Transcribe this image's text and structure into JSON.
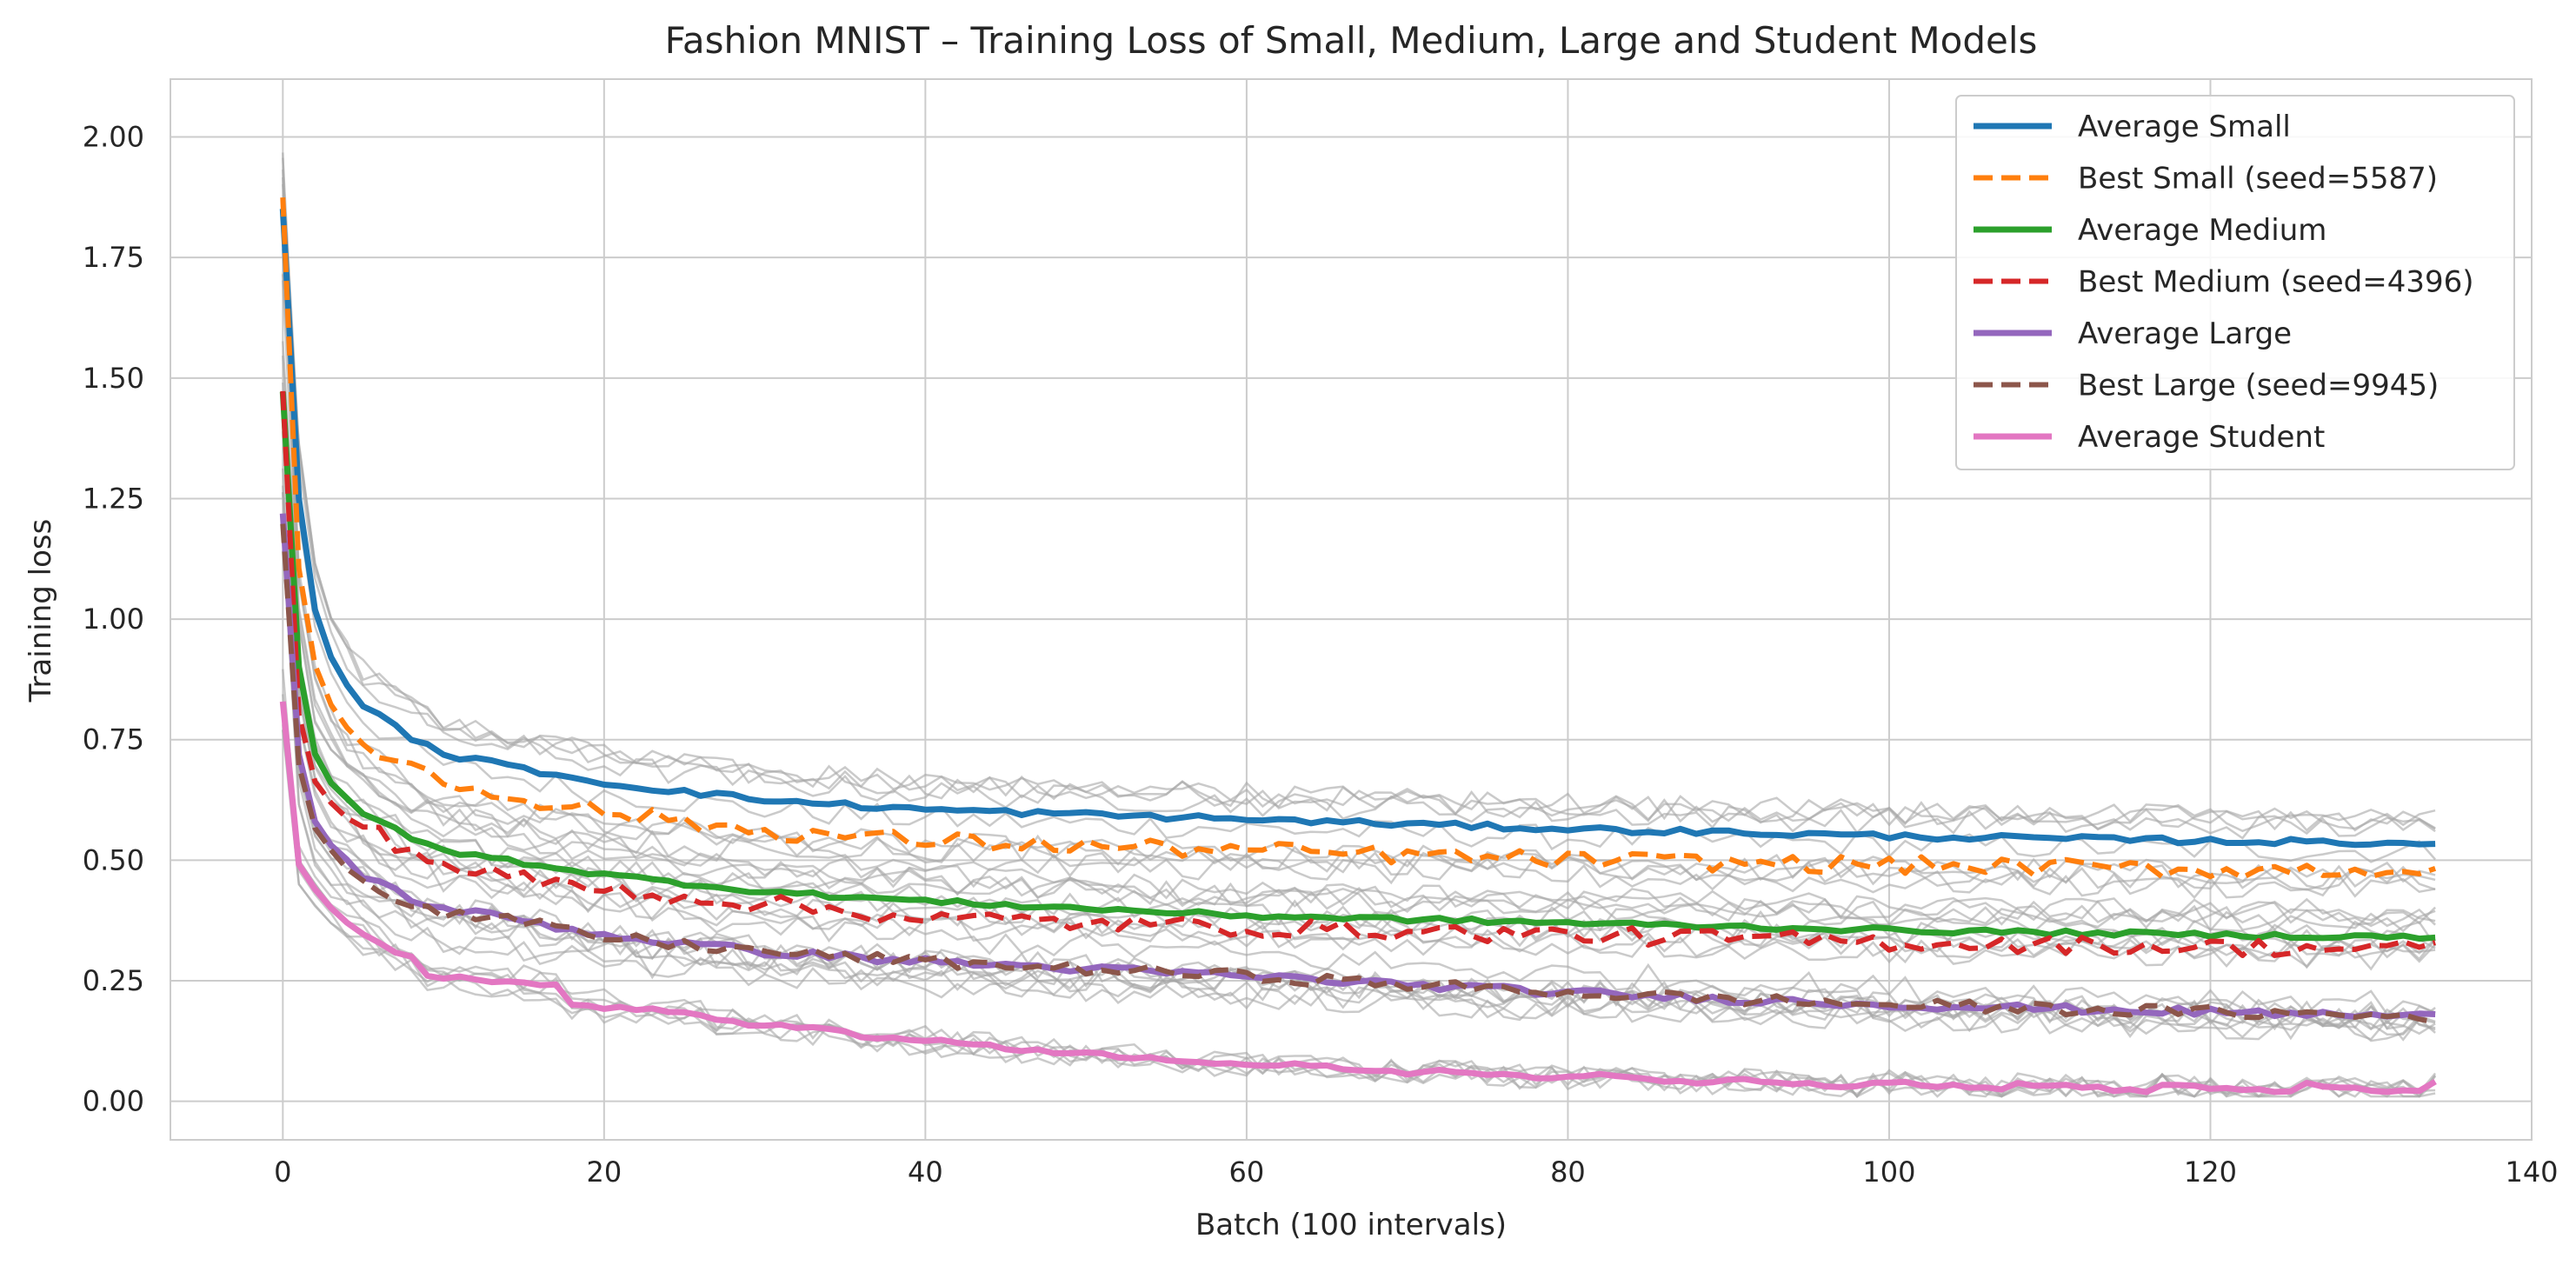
{
  "chart_data": {
    "type": "line",
    "title": "Fashion MNIST – Training Loss of Small, Medium, Large and Student Models",
    "xlabel": "Batch (100 intervals)",
    "ylabel": "Training loss",
    "xlim": [
      -7,
      140
    ],
    "ylim": [
      -0.08,
      2.12
    ],
    "xticks": [
      0,
      20,
      40,
      60,
      80,
      100,
      120,
      140
    ],
    "xtick_labels": [
      "0",
      "20",
      "40",
      "60",
      "80",
      "100",
      "120",
      "140"
    ],
    "yticks": [
      0.0,
      0.25,
      0.5,
      0.75,
      1.0,
      1.25,
      1.5,
      1.75,
      2.0
    ],
    "ytick_labels": [
      "0.00",
      "0.25",
      "0.50",
      "0.75",
      "1.00",
      "1.25",
      "1.50",
      "1.75",
      "2.00"
    ],
    "grid": true,
    "legend_position": "top-right",
    "n_points": 135,
    "individual_runs_color": "#a6a6a6",
    "series": [
      {
        "name": "Average Small",
        "color": "#1f77b4",
        "dash": false,
        "start": 1.85,
        "knots": [
          [
            0,
            1.85
          ],
          [
            1,
            1.25
          ],
          [
            2,
            1.02
          ],
          [
            3,
            0.92
          ],
          [
            5,
            0.82
          ],
          [
            8,
            0.755
          ],
          [
            10,
            0.72
          ],
          [
            15,
            0.69
          ],
          [
            20,
            0.66
          ],
          [
            30,
            0.625
          ],
          [
            40,
            0.605
          ],
          [
            60,
            0.585
          ],
          [
            80,
            0.565
          ],
          [
            100,
            0.55
          ],
          [
            120,
            0.54
          ],
          [
            134,
            0.535
          ]
        ],
        "noise": 0.006
      },
      {
        "name": "Best Small (seed=5587)",
        "color": "#ff7f0e",
        "dash": true,
        "start": 1.88,
        "knots": [
          [
            0,
            1.88
          ],
          [
            1,
            1.1
          ],
          [
            2,
            0.9
          ],
          [
            3,
            0.82
          ],
          [
            5,
            0.74
          ],
          [
            8,
            0.7
          ],
          [
            10,
            0.66
          ],
          [
            15,
            0.63
          ],
          [
            20,
            0.6
          ],
          [
            30,
            0.56
          ],
          [
            40,
            0.54
          ],
          [
            60,
            0.52
          ],
          [
            80,
            0.5
          ],
          [
            100,
            0.49
          ],
          [
            120,
            0.48
          ],
          [
            134,
            0.48
          ]
        ],
        "noise": 0.018
      },
      {
        "name": "Average Medium",
        "color": "#2ca02c",
        "dash": false,
        "start": 1.47,
        "knots": [
          [
            0,
            1.47
          ],
          [
            1,
            0.9
          ],
          [
            2,
            0.72
          ],
          [
            3,
            0.66
          ],
          [
            5,
            0.6
          ],
          [
            8,
            0.545
          ],
          [
            10,
            0.52
          ],
          [
            15,
            0.495
          ],
          [
            20,
            0.47
          ],
          [
            30,
            0.435
          ],
          [
            40,
            0.415
          ],
          [
            60,
            0.385
          ],
          [
            80,
            0.37
          ],
          [
            100,
            0.355
          ],
          [
            120,
            0.345
          ],
          [
            134,
            0.34
          ]
        ],
        "noise": 0.005
      },
      {
        "name": "Best Medium (seed=4396)",
        "color": "#d62728",
        "dash": true,
        "start": 1.47,
        "knots": [
          [
            0,
            1.47
          ],
          [
            1,
            0.8
          ],
          [
            2,
            0.66
          ],
          [
            3,
            0.62
          ],
          [
            5,
            0.57
          ],
          [
            8,
            0.52
          ],
          [
            10,
            0.49
          ],
          [
            15,
            0.46
          ],
          [
            20,
            0.44
          ],
          [
            30,
            0.41
          ],
          [
            40,
            0.38
          ],
          [
            60,
            0.36
          ],
          [
            80,
            0.345
          ],
          [
            100,
            0.33
          ],
          [
            120,
            0.32
          ],
          [
            134,
            0.315
          ]
        ],
        "noise": 0.018
      },
      {
        "name": "Average Large",
        "color": "#9467bd",
        "dash": false,
        "start": 1.22,
        "knots": [
          [
            0,
            1.22
          ],
          [
            1,
            0.72
          ],
          [
            2,
            0.58
          ],
          [
            3,
            0.53
          ],
          [
            5,
            0.47
          ],
          [
            8,
            0.42
          ],
          [
            10,
            0.4
          ],
          [
            15,
            0.375
          ],
          [
            20,
            0.345
          ],
          [
            30,
            0.31
          ],
          [
            40,
            0.29
          ],
          [
            60,
            0.26
          ],
          [
            80,
            0.225
          ],
          [
            100,
            0.2
          ],
          [
            120,
            0.185
          ],
          [
            134,
            0.175
          ]
        ],
        "noise": 0.008
      },
      {
        "name": "Best Large (seed=9945)",
        "color": "#8c564b",
        "dash": true,
        "start": 1.2,
        "knots": [
          [
            0,
            1.2
          ],
          [
            1,
            0.7
          ],
          [
            2,
            0.57
          ],
          [
            3,
            0.52
          ],
          [
            5,
            0.46
          ],
          [
            8,
            0.41
          ],
          [
            10,
            0.39
          ],
          [
            15,
            0.37
          ],
          [
            20,
            0.34
          ],
          [
            30,
            0.31
          ],
          [
            40,
            0.29
          ],
          [
            60,
            0.26
          ],
          [
            80,
            0.225
          ],
          [
            100,
            0.2
          ],
          [
            120,
            0.185
          ],
          [
            134,
            0.175
          ]
        ],
        "noise": 0.012
      },
      {
        "name": "Average Student",
        "color": "#e377c2",
        "dash": false,
        "start": 0.83,
        "steps": [
          [
            0,
            0.83
          ],
          [
            1,
            0.49
          ],
          [
            2,
            0.44
          ],
          [
            3,
            0.4
          ],
          [
            4,
            0.37
          ],
          [
            5,
            0.35
          ],
          [
            6,
            0.33
          ],
          [
            7,
            0.31
          ],
          [
            8,
            0.3
          ],
          [
            9,
            0.26
          ],
          [
            18,
            0.2
          ],
          [
            27,
            0.165
          ],
          [
            36,
            0.135
          ],
          [
            45,
            0.11
          ],
          [
            54,
            0.09
          ],
          [
            63,
            0.075
          ],
          [
            72,
            0.065
          ],
          [
            81,
            0.055
          ],
          [
            90,
            0.048
          ],
          [
            99,
            0.042
          ],
          [
            108,
            0.038
          ],
          [
            117,
            0.035
          ],
          [
            126,
            0.035
          ],
          [
            134,
            0.04
          ]
        ],
        "noise": 0.004
      }
    ]
  }
}
